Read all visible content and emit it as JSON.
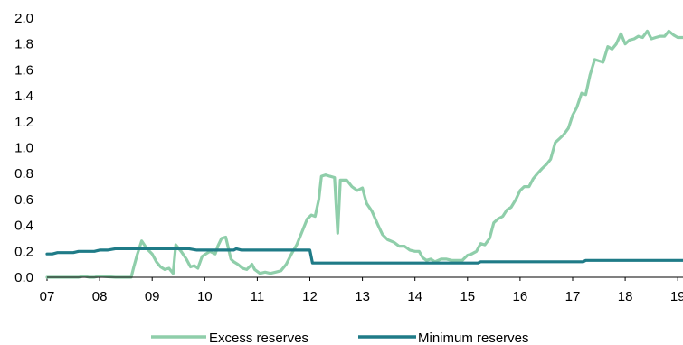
{
  "chart_data": {
    "type": "line",
    "title": "",
    "xlabel": "",
    "ylabel": "",
    "x_tick_labels": [
      "07",
      "08",
      "09",
      "10",
      "11",
      "12",
      "13",
      "14",
      "15",
      "16",
      "17",
      "18",
      "19"
    ],
    "y_tick_labels": [
      "0.0",
      "0.2",
      "0.4",
      "0.6",
      "0.8",
      "1.0",
      "1.2",
      "1.4",
      "1.6",
      "1.8",
      "2.0"
    ],
    "xlim": [
      2007,
      2019.1
    ],
    "ylim": [
      0,
      2.0
    ],
    "grid": false,
    "legend_position": "bottom",
    "series": [
      {
        "name": "Excess reserves",
        "color": "#8fceaa",
        "x": [
          2007.0,
          2007.3,
          2007.6,
          2007.7,
          2007.8,
          2007.9,
          2008.0,
          2008.3,
          2008.5,
          2008.6,
          2008.65,
          2008.72,
          2008.8,
          2008.9,
          2009.0,
          2009.08,
          2009.16,
          2009.24,
          2009.32,
          2009.4,
          2009.45,
          2009.55,
          2009.65,
          2009.73,
          2009.8,
          2009.87,
          2009.95,
          2010.02,
          2010.1,
          2010.2,
          2010.25,
          2010.32,
          2010.4,
          2010.5,
          2010.55,
          2010.63,
          2010.72,
          2010.8,
          2010.9,
          2010.95,
          2011.05,
          2011.15,
          2011.25,
          2011.35,
          2011.45,
          2011.55,
          2011.65,
          2011.75,
          2011.85,
          2011.95,
          2012.03,
          2012.1,
          2012.17,
          2012.22,
          2012.3,
          2012.38,
          2012.47,
          2012.53,
          2012.58,
          2012.7,
          2012.8,
          2012.9,
          2013.0,
          2013.08,
          2013.18,
          2013.3,
          2013.38,
          2013.48,
          2013.6,
          2013.7,
          2013.8,
          2013.9,
          2014.0,
          2014.08,
          2014.15,
          2014.22,
          2014.3,
          2014.38,
          2014.5,
          2014.6,
          2014.7,
          2014.8,
          2014.9,
          2015.0,
          2015.08,
          2015.17,
          2015.25,
          2015.33,
          2015.42,
          2015.5,
          2015.58,
          2015.67,
          2015.75,
          2015.83,
          2015.92,
          2016.0,
          2016.08,
          2016.17,
          2016.25,
          2016.33,
          2016.42,
          2016.5,
          2016.58,
          2016.67,
          2016.75,
          2016.83,
          2016.92,
          2017.0,
          2017.08,
          2017.17,
          2017.25,
          2017.33,
          2017.42,
          2017.5,
          2017.58,
          2017.67,
          2017.75,
          2017.83,
          2017.92,
          2018.0,
          2018.08,
          2018.17,
          2018.25,
          2018.33,
          2018.42,
          2018.5,
          2018.58,
          2018.67,
          2018.75,
          2018.83,
          2018.92,
          2019.0,
          2019.1
        ],
        "values": [
          0.0,
          0.0,
          0.0,
          0.01,
          0.0,
          0.0,
          0.01,
          0.0,
          0.0,
          0.0,
          0.08,
          0.18,
          0.28,
          0.22,
          0.18,
          0.12,
          0.08,
          0.06,
          0.07,
          0.03,
          0.25,
          0.2,
          0.14,
          0.08,
          0.09,
          0.07,
          0.16,
          0.18,
          0.2,
          0.18,
          0.24,
          0.3,
          0.31,
          0.14,
          0.12,
          0.1,
          0.07,
          0.06,
          0.1,
          0.06,
          0.03,
          0.04,
          0.03,
          0.04,
          0.05,
          0.1,
          0.18,
          0.25,
          0.35,
          0.45,
          0.48,
          0.47,
          0.6,
          0.78,
          0.79,
          0.78,
          0.77,
          0.34,
          0.75,
          0.75,
          0.7,
          0.67,
          0.69,
          0.57,
          0.51,
          0.4,
          0.33,
          0.29,
          0.27,
          0.24,
          0.24,
          0.21,
          0.2,
          0.2,
          0.15,
          0.13,
          0.14,
          0.12,
          0.14,
          0.14,
          0.13,
          0.13,
          0.13,
          0.17,
          0.18,
          0.2,
          0.26,
          0.25,
          0.3,
          0.42,
          0.45,
          0.47,
          0.52,
          0.54,
          0.6,
          0.67,
          0.7,
          0.7,
          0.76,
          0.8,
          0.84,
          0.87,
          0.91,
          1.04,
          1.07,
          1.1,
          1.15,
          1.25,
          1.31,
          1.42,
          1.41,
          1.56,
          1.68,
          1.67,
          1.66,
          1.78,
          1.76,
          1.8,
          1.88,
          1.8,
          1.83,
          1.84,
          1.86,
          1.85,
          1.9,
          1.84,
          1.85,
          1.86,
          1.86,
          1.9,
          1.87,
          1.85,
          1.85
        ]
      },
      {
        "name": "Minimum reserves",
        "color": "#1f7b87",
        "x": [
          2007.0,
          2007.1,
          2007.2,
          2007.35,
          2007.5,
          2007.6,
          2007.75,
          2007.9,
          2008.0,
          2008.15,
          2008.3,
          2008.45,
          2008.6,
          2008.75,
          2008.9,
          2009.0,
          2009.2,
          2009.4,
          2009.55,
          2009.7,
          2009.85,
          2010.0,
          2010.2,
          2010.4,
          2010.55,
          2010.6,
          2010.7,
          2010.8,
          2011.0,
          2011.3,
          2011.6,
          2011.9,
          2012.0,
          2012.05,
          2012.1,
          2012.2,
          2012.5,
          2012.8,
          2013.0,
          2013.5,
          2014.0,
          2014.5,
          2015.0,
          2015.2,
          2015.25,
          2015.5,
          2016.0,
          2016.5,
          2017.0,
          2017.2,
          2017.25,
          2017.5,
          2018.0,
          2018.5,
          2019.0,
          2019.1
        ],
        "values": [
          0.18,
          0.18,
          0.19,
          0.19,
          0.19,
          0.2,
          0.2,
          0.2,
          0.21,
          0.21,
          0.22,
          0.22,
          0.22,
          0.22,
          0.22,
          0.22,
          0.22,
          0.22,
          0.22,
          0.22,
          0.21,
          0.21,
          0.21,
          0.21,
          0.21,
          0.22,
          0.21,
          0.21,
          0.21,
          0.21,
          0.21,
          0.21,
          0.21,
          0.11,
          0.11,
          0.11,
          0.11,
          0.11,
          0.11,
          0.11,
          0.11,
          0.11,
          0.11,
          0.11,
          0.12,
          0.12,
          0.12,
          0.12,
          0.12,
          0.12,
          0.13,
          0.13,
          0.13,
          0.13,
          0.13,
          0.13
        ]
      }
    ]
  }
}
